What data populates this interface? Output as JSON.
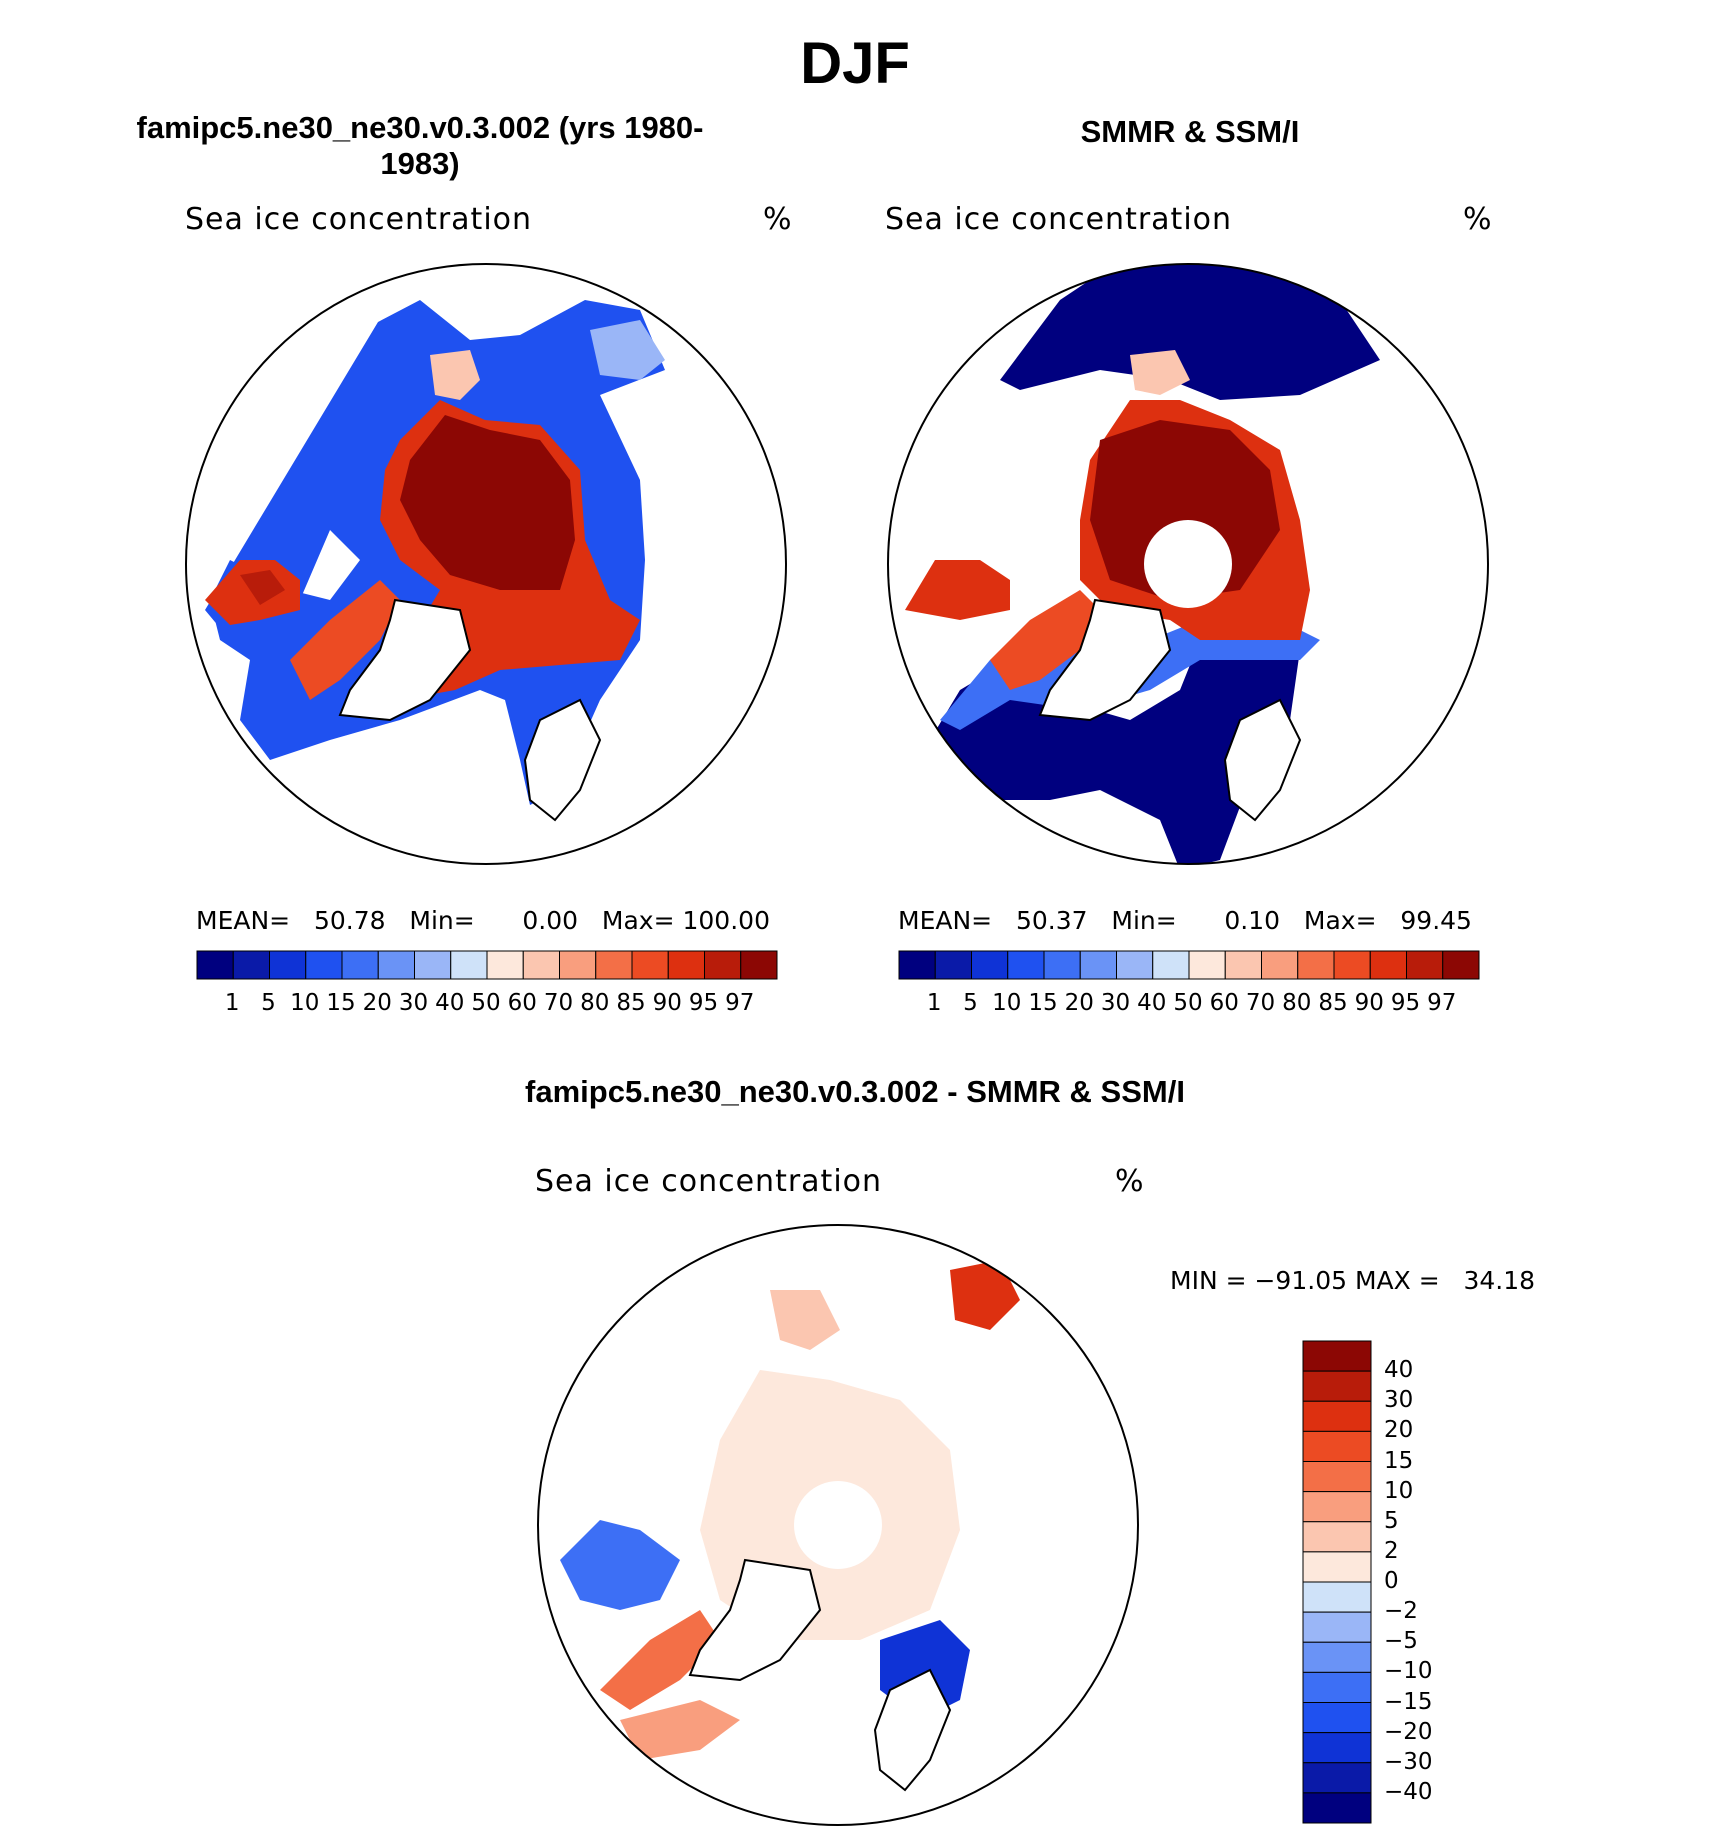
{
  "title": "DJF",
  "palette_abs": [
    "#00007f",
    "#0a1aa8",
    "#0f33d6",
    "#1f51f0",
    "#3d6ff5",
    "#6a93f6",
    "#9ab6f7",
    "#cfe2f9",
    "#fde8dc",
    "#fbc6b0",
    "#f99e7e",
    "#f36f47",
    "#ec4b23",
    "#dd3010",
    "#b81c0a",
    "#8c0704"
  ],
  "palette_diff": [
    "#8c0704",
    "#b81c0a",
    "#dd3010",
    "#ec4b23",
    "#f36f47",
    "#f99e7e",
    "#fbc6b0",
    "#fde8dc",
    "#cfe2f9",
    "#9ab6f7",
    "#6a93f6",
    "#3d6ff5",
    "#1f51f0",
    "#0f33d6",
    "#0a1aa8",
    "#00007f"
  ],
  "panels": {
    "model": {
      "title": "famipc5.ne30_ne30.v0.3.002 (yrs 1980-1983)",
      "variable": "Sea ice concentration",
      "units": "%",
      "mean_label": "MEAN=",
      "mean": "50.78",
      "min_label": "Min=",
      "min": "0.00",
      "max_label": "Max=",
      "max": "100.00",
      "ticks": [
        "1",
        "5",
        "10",
        "15",
        "20",
        "30",
        "40",
        "50",
        "60",
        "70",
        "80",
        "85",
        "90",
        "95",
        "97"
      ]
    },
    "obs": {
      "title": "SMMR & SSM/I",
      "variable": "Sea ice concentration",
      "units": "%",
      "mean_label": "MEAN=",
      "mean": "50.37",
      "min_label": "Min=",
      "min": "0.10",
      "max_label": "Max=",
      "max": "99.45",
      "ticks": [
        "1",
        "5",
        "10",
        "15",
        "20",
        "30",
        "40",
        "50",
        "60",
        "70",
        "80",
        "85",
        "90",
        "95",
        "97"
      ]
    },
    "diff": {
      "title": "famipc5.ne30_ne30.v0.3.002 - SMMR & SSM/I",
      "variable": "Sea ice concentration",
      "units": "%",
      "minmax": "MIN = −91.05 MAX =   34.18",
      "ticks": [
        "40",
        "30",
        "20",
        "15",
        "10",
        "5",
        "2",
        "0",
        "−2",
        "−5",
        "−10",
        "−15",
        "−20",
        "−30",
        "−40"
      ]
    }
  }
}
